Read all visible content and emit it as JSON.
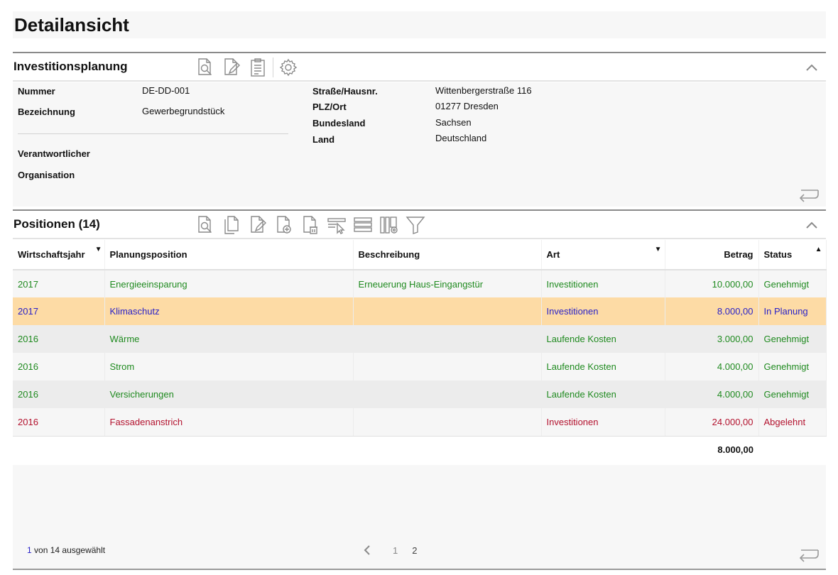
{
  "page": {
    "title": "Detailansicht"
  },
  "section_investment": {
    "title": "Investitionsplanung",
    "toolbar_icons": [
      "view-document-icon",
      "edit-document-icon",
      "clipboard-icon",
      "settings-gear-icon"
    ],
    "left_fields": [
      {
        "label": "Nummer",
        "value": "DE-DD-001"
      },
      {
        "label": "Bezeichnung",
        "value": "Gewerbegrundstück"
      },
      {
        "label": "Verantwortlicher",
        "value": ""
      },
      {
        "label": "Organisation",
        "value": ""
      }
    ],
    "right_fields": [
      {
        "label": "Straße/Hausnr.",
        "value": "Wittenbergerstraße 116"
      },
      {
        "label": "PLZ/Ort",
        "value": "01277 Dresden"
      },
      {
        "label": "Bundesland",
        "value": "Sachsen"
      },
      {
        "label": "Land",
        "value": "Deutschland"
      }
    ]
  },
  "section_positions": {
    "title": "Positionen (14)",
    "toolbar_icons": [
      "view-document-icon",
      "copy-document-icon",
      "edit-document-icon",
      "add-document-icon",
      "delete-document-icon",
      "select-row-icon",
      "list-rows-icon",
      "column-settings-icon",
      "filter-icon"
    ],
    "columns": [
      {
        "label": "Wirtschaftsjahr",
        "sort": "desc"
      },
      {
        "label": "Planungsposition",
        "sort": ""
      },
      {
        "label": "Beschreibung",
        "sort": ""
      },
      {
        "label": "Art",
        "sort": "desc"
      },
      {
        "label": "Betrag",
        "sort": ""
      },
      {
        "label": "Status",
        "sort": "asc"
      }
    ],
    "rows": [
      {
        "year": "2017",
        "position": "Energieeinsparung",
        "description": "Erneuerung Haus-Eingangstür",
        "type": "Investitionen",
        "amount": "10.000,00",
        "status": "Genehmigt",
        "color": "green",
        "selected": false
      },
      {
        "year": "2017",
        "position": "Klimaschutz",
        "description": "",
        "type": "Investitionen",
        "amount": "8.000,00",
        "status": "In Planung",
        "color": "blue",
        "selected": true
      },
      {
        "year": "2016",
        "position": "Wärme",
        "description": "",
        "type": "Laufende Kosten",
        "amount": "3.000,00",
        "status": "Genehmigt",
        "color": "green",
        "selected": false
      },
      {
        "year": "2016",
        "position": "Strom",
        "description": "",
        "type": "Laufende Kosten",
        "amount": "4.000,00",
        "status": "Genehmigt",
        "color": "green",
        "selected": false
      },
      {
        "year": "2016",
        "position": "Versicherungen",
        "description": "",
        "type": "Laufende Kosten",
        "amount": "4.000,00",
        "status": "Genehmigt",
        "color": "green",
        "selected": false
      },
      {
        "year": "2016",
        "position": "Fassadenanstrich",
        "description": "",
        "type": "Investitionen",
        "amount": "24.000,00",
        "status": "Abgelehnt",
        "color": "red",
        "selected": false
      }
    ],
    "total": "8.000,00",
    "selection": {
      "count": "1",
      "text": "von 14 ausgewählt"
    },
    "pagination": {
      "pages": [
        "1",
        "2"
      ],
      "current": "2"
    }
  },
  "colors": {
    "approved": "#1f8a1f",
    "planning": "#2a22c8",
    "rejected": "#b3122e",
    "selected_row": "#fddba5"
  }
}
